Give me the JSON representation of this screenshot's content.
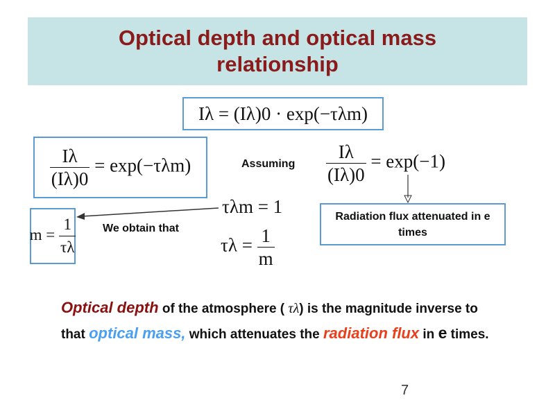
{
  "title": "Optical depth and optical mass relationship",
  "formulas": {
    "main": "Iλ = (Iλ)0 · exp(−τλm)",
    "ratio": {
      "numerator": "Iλ",
      "denominator": "(Iλ)0",
      "rhs": "= exp(−τλm)"
    },
    "assumed": {
      "numerator": "Iλ",
      "denominator": "(Iλ)0",
      "rhs": "= exp(−1)"
    },
    "product": "τλm = 1",
    "tau": {
      "lhs": "τλ =",
      "numerator": "1",
      "denominator": "m"
    },
    "mass": {
      "lhs": "m =",
      "numerator": "1",
      "denominator": "τλ"
    }
  },
  "labels": {
    "assuming": "Assuming",
    "we_obtain": "We obtain that",
    "attenuated": "Radiation flux attenuated in e times"
  },
  "paragraph": {
    "t1": "Optical depth",
    "t2": " of the atmosphere ( ",
    "t3": "τλ",
    "t4": ") is the magnitude inverse to that ",
    "t5": "optical mass,",
    "t6": " which attenuates the ",
    "t7": "radiation flux",
    "t8": " in ",
    "t9": "e",
    "t10": " times."
  },
  "page_number": "7",
  "colors": {
    "banner": "#c6e4e6",
    "title": "#8b1a1a",
    "box_border": "#5b9bd5",
    "optical_depth": "#8b1010",
    "optical_mass": "#4a9ff0",
    "radiation_flux": "#e8401c"
  }
}
